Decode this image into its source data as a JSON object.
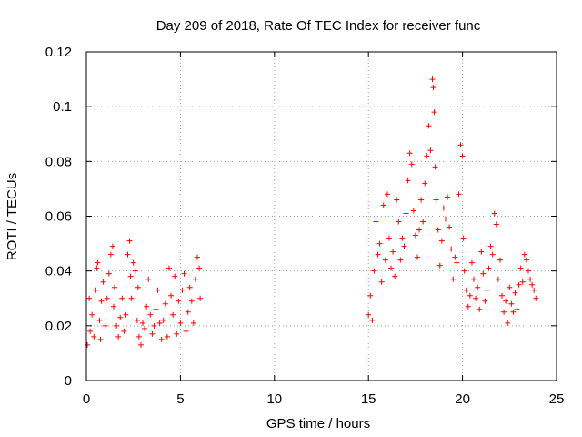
{
  "chart_data": {
    "type": "scatter",
    "title": "Day 209 of 2018, Rate Of TEC Index for receiver func",
    "xlabel": "GPS time / hours",
    "ylabel": "ROTI / TECUs",
    "xlim": [
      0,
      25
    ],
    "ylim": [
      0,
      0.12
    ],
    "xticks": [
      0,
      5,
      10,
      15,
      20,
      25
    ],
    "xtick_labels": [
      "0",
      "5",
      "10",
      "15",
      "20",
      "25"
    ],
    "yticks": [
      0,
      0.02,
      0.04,
      0.06,
      0.08,
      0.1,
      0.12
    ],
    "ytick_labels": [
      "0",
      "0.02",
      "0.04",
      "0.06",
      "0.08",
      "0.1",
      "0.12"
    ],
    "grid": true,
    "marker": "+",
    "color": "#ff0000",
    "series": [
      {
        "x": [
          0.05,
          0.15,
          0.2,
          0.3,
          0.4,
          0.5,
          0.55,
          0.6,
          0.7,
          0.75,
          0.8,
          0.9,
          1.0,
          1.1,
          1.2,
          1.3,
          1.4,
          1.45,
          1.5,
          1.6,
          1.7,
          1.8,
          1.9,
          2.0,
          2.1,
          2.2,
          2.3,
          2.35,
          2.4,
          2.5,
          2.6,
          2.7,
          2.75,
          2.8,
          2.9,
          3.0,
          3.1,
          3.2,
          3.3,
          3.4,
          3.5,
          3.6,
          3.7,
          3.8,
          3.9,
          4.0,
          4.1,
          4.2,
          4.3,
          4.4,
          4.5,
          4.6,
          4.7,
          4.8,
          4.9,
          5.0,
          5.1,
          5.2,
          5.3,
          5.4,
          5.5,
          5.6,
          5.7,
          5.8,
          5.9,
          6.0,
          6.05
        ],
        "y": [
          0.013,
          0.03,
          0.018,
          0.024,
          0.016,
          0.033,
          0.041,
          0.043,
          0.022,
          0.015,
          0.029,
          0.036,
          0.02,
          0.03,
          0.039,
          0.046,
          0.049,
          0.027,
          0.034,
          0.02,
          0.016,
          0.023,
          0.03,
          0.018,
          0.024,
          0.046,
          0.051,
          0.038,
          0.03,
          0.043,
          0.04,
          0.022,
          0.034,
          0.016,
          0.013,
          0.021,
          0.019,
          0.027,
          0.037,
          0.024,
          0.017,
          0.02,
          0.026,
          0.033,
          0.021,
          0.015,
          0.022,
          0.028,
          0.016,
          0.041,
          0.031,
          0.024,
          0.038,
          0.017,
          0.029,
          0.021,
          0.033,
          0.039,
          0.018,
          0.025,
          0.034,
          0.029,
          0.021,
          0.037,
          0.045,
          0.041,
          0.03
        ]
      },
      {
        "x": [
          15.0,
          15.1,
          15.2,
          15.3,
          15.4,
          15.5,
          15.6,
          15.7,
          15.8,
          15.9,
          16.0,
          16.1,
          16.2,
          16.3,
          16.4,
          16.5,
          16.6,
          16.7,
          16.8,
          16.9,
          17.0,
          17.1,
          17.2,
          17.3,
          17.4,
          17.5,
          17.6,
          17.7,
          17.8,
          17.9,
          18.0,
          18.1,
          18.2,
          18.3,
          18.4,
          18.45,
          18.5,
          18.55,
          18.6,
          18.7,
          18.8,
          18.9,
          19.0,
          19.1,
          19.2,
          19.3,
          19.4,
          19.5,
          19.6,
          19.7,
          19.8,
          19.9,
          20.0,
          20.05,
          20.1,
          20.2,
          20.3,
          20.4,
          20.5,
          20.6,
          20.7,
          20.8,
          20.9,
          21.0,
          21.1,
          21.2,
          21.3,
          21.4,
          21.5,
          21.6,
          21.7,
          21.8,
          21.9,
          22.0,
          22.1,
          22.2,
          22.3,
          22.4,
          22.5,
          22.6,
          22.7,
          22.8,
          22.9,
          23.0,
          23.1,
          23.2,
          23.3,
          23.4,
          23.5,
          23.6,
          23.7,
          23.8,
          23.9
        ],
        "y": [
          0.024,
          0.031,
          0.022,
          0.04,
          0.058,
          0.046,
          0.05,
          0.036,
          0.064,
          0.044,
          0.068,
          0.052,
          0.041,
          0.047,
          0.038,
          0.066,
          0.058,
          0.044,
          0.052,
          0.049,
          0.061,
          0.073,
          0.083,
          0.079,
          0.062,
          0.053,
          0.045,
          0.055,
          0.066,
          0.058,
          0.072,
          0.082,
          0.093,
          0.084,
          0.11,
          0.107,
          0.098,
          0.078,
          0.066,
          0.055,
          0.042,
          0.051,
          0.063,
          0.059,
          0.067,
          0.056,
          0.048,
          0.037,
          0.045,
          0.043,
          0.068,
          0.086,
          0.082,
          0.052,
          0.04,
          0.033,
          0.027,
          0.031,
          0.043,
          0.037,
          0.03,
          0.034,
          0.026,
          0.047,
          0.039,
          0.029,
          0.033,
          0.041,
          0.049,
          0.046,
          0.061,
          0.057,
          0.037,
          0.044,
          0.031,
          0.025,
          0.029,
          0.021,
          0.034,
          0.028,
          0.025,
          0.032,
          0.026,
          0.035,
          0.041,
          0.036,
          0.046,
          0.044,
          0.04,
          0.037,
          0.035,
          0.033,
          0.03
        ]
      }
    ]
  }
}
